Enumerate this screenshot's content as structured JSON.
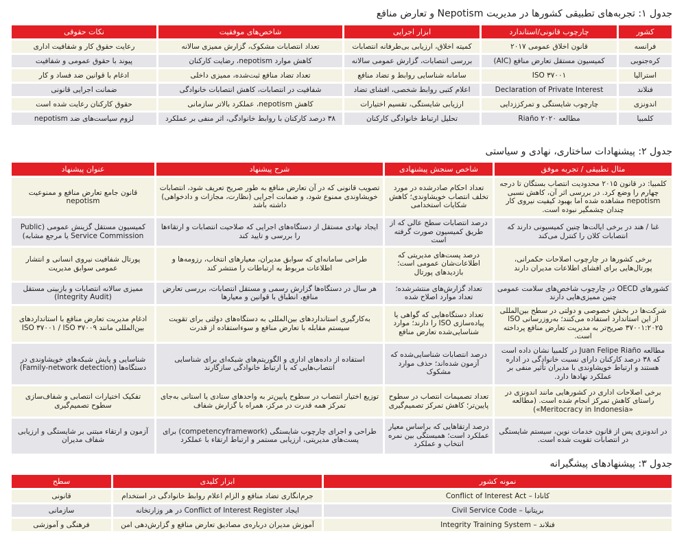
{
  "table1": {
    "title": "جدول ۱: تجربه‌های تطبیقی کشورها در مدیریت Nepotism و تعارض منافع",
    "headers": [
      "کشور",
      "چارچوب قانونی/استاندارد",
      "ابزار اجرایی",
      "شاخص‌های موفقیت",
      "نکات حقوقی"
    ],
    "rows": [
      [
        "فرانسه",
        "قانون اخلاق عمومی ۲۰۱۷",
        "کمیته اخلاق، ارزیابی بی‌طرفانه انتصابات",
        "تعداد انتصابات مشکوک، گزارش ممیزی سالانه",
        "رعایت حقوق کار و شفافیت اداری"
      ],
      [
        "کره‌جنوبی",
        "کمیسیون مستقل تعارض منافع (AIC)",
        "بررسی انتصابات، گزارش عمومی سالانه",
        "کاهش موارد nepotism، رضایت کارکنان",
        "پیوند با حقوق عمومی و شفافیت"
      ],
      [
        "استرالیا",
        "ISO ۳۷۰۰۱",
        "سامانه شناسایی روابط و تضاد منافع",
        "تعداد تضاد منافع ثبت‌شده، ممیزی داخلی",
        "ادغام با قوانین ضد فساد و کار"
      ],
      [
        "فنلاند",
        "Declaration of Private Interest",
        "اعلام کتبی روابط شخصی، افشای تضاد",
        "شفافیت در انتصابات، کاهش انتصابات خانوادگی",
        "ضمانت اجرایی قانونی"
      ],
      [
        "اندونزی",
        "چارچوب شایستگی و تمرکززدایی",
        "ارزیابی شایستگی، تقسیم اختیارات",
        "کاهش nepotism، عملکرد بالاتر سازمانی",
        "حقوق کارکنان رعایت شده است"
      ],
      [
        "کلمبیا",
        "مطالعه Riaño ۲۰۲۰",
        "تحلیل ارتباط خانوادگی کارکنان",
        "۳۸ درصد کارکنان با روابط خانوادگی، اثر منفی بر عملکرد",
        "لزوم سیاست‌های ضد nepotism"
      ]
    ]
  },
  "table2": {
    "title": "جدول ۲: پیشنهادات ساختاری، نهادی و سیاستی",
    "headers": [
      "مثال تطبیقی / تجربه موفق",
      "شاخص سنجش پیشنهادی",
      "شرح پیشنهاد",
      "عنوان پیشنهاد"
    ],
    "rows": [
      [
        "کلمبیا: در قانون ۲۰۱۵ محدودیت انتصاب بستگان تا درجه چهارم را وضع کرد. در بررسی اثر آن، کاهش نسبی nepotism مشاهده شده اما بهبود کیفیت نیروی کار چندان چشمگیر نبوده است.",
        "تعداد احکام صادرشده در مورد تخلف انتصاب خویشاوندی؛ کاهش شکایات استخدامی",
        "تصویب قانونی که در آن تعارض منافع به طور صریح تعریف شود، انتصابات خویشاوندی ممنوع شود، و ضمانت اجرایی (نظارت، مجازات و دادخواهی) داشته باشد",
        "قانون جامع تعارض منافع و ممنوعیت nepotism"
      ],
      [
        "غنا / هند در برخی ایالت‌ها چنین کمیسیونی دارند که انتصابات کلان را کنترل می‌کند",
        "درصد انتصابات سطح عالی که از طریق کمیسیون صورت گرفته است",
        "ایجاد نهادی مستقل از دستگاه‌های اجرایی که صلاحیت انتصابات و ارتقاءها را بررسی و تایید کند",
        "کمیسیون مستقل گزینش عمومی (Public Service Commission یا مرجع مشابه)"
      ],
      [
        "برخی کشورها در چارچوب اصلاحات حکمرانی، پورتال‌هایی برای افشای اطلاعات مدیران دارند",
        "درصد پست‌های مدیریتی که اطلاعات‌شان عمومی است؛ بازدیدهای پورتال",
        "طراحی سامانه‌ای که سوابق مدیران، معیارهای انتخاب، رزومه‌ها و اطلاعات مربوط به ارتباطات را منتشر کند",
        "پورتال شفافیت نیروی انسانی و انتشار عمومی سوابق مدیریت"
      ],
      [
        "کشورهای OECD در چارچوب شاخص‌های سلامت عمومی چنین ممیزی‌هایی دارند",
        "تعداد گزارش‌های منتشرشده؛ تعداد موارد اصلاح شده",
        "هر سال در دستگاه‌ها گزارش رسمی و مستقل انتصابات، بررسی تعارض منافع، انطباق با قوانین و معیارها",
        "ممیزی سالانه انتصابات و بازبینی مستقل (Integrity Audit)"
      ],
      [
        "شرکت‌ها در بخش خصوصی و دولتی در سطح بین‌المللی از این استاندارد استفاده می‌کنند؛ به‌روزرسانی ISO ۳۷۰۰۱:۲۰۲۵ صریح‌تر به مدیریت تعارض منافع پرداخته است.",
        "تعداد دستگاه‌هایی که گواهی یا پیاده‌سازی ISO را دارند؛ موارد شناسایی‌شده تعارض منافع",
        "به‌کارگیری استانداردهای بین‌المللی به دستگاه‌های دولتی برای تقویت سیستم مقابله با تعارض منافع و سوءاستفاده از قدرت",
        "ادغام مدیریت تعارض منافع با استانداردهای بین‌المللی مانند ISO ۳۷۰۰۱ / ISO ۳۷۰۰۹"
      ],
      [
        "مطالعه Juan Felipe Riaño در کلمبیا نشان داده است که ۳۸ درصد کارکنان دارای نسبت خانوادگی در اداره هستند و ارتباط خویشاوندی با مدیران تأثیر منفی بر عملکرد نهادها دارد.",
        "درصد انتصابات شناسایی‌شده که آزمون شده‌اند؛ حذف موارد مشکوک",
        "استفاده از داده‌های اداری و الگوریتم‌های شبکه‌ای برای شناسایی انتصاب‌هایی که با ارتباط خانوادگی سازگارند",
        "شناسایی و پایش شبکه‌های خویشاوندی در دستگاه‌ها (Family-network detection)"
      ],
      [
        "برخی اصلاحات اداری در کشورهایی مانند اندونزی در راستای کاهش تمرکز انجام شده است. (مطالعه «Meritocracy in Indonesia»)",
        "تعداد تصمیمات انتصاب در سطوح پایین‌تر؛ کاهش تمرکز تصمیم‌گیری",
        "توزیع اختیار انتصاب در سطوح پایین‌تر به واحدهای ستادی یا استانی به‌جای تمرکز همه قدرت در مرکز، همراه با گزارش شفاف",
        "تفکیک اختیارات انتصابی و شفاف‌سازی سطوح تصمیم‌گیری"
      ],
      [
        "در اندونزی پس از قانون خدمات نوین، سیستم شایستگی در انتصابات تقویت شده است.",
        "درصد ارتقاهایی که براساس معیار عملکرد است؛ همبستگی بین نمره انتخاب و عملکرد",
        "طراحی و اجرای چارچوب شایستگی (competencyframework) برای پست‌های مدیریتی، ارزیابی مستمر و ارتباط ارتقاء با عملکرد",
        "آزمون و ارتقاء مبتنی بر شایستگی و ارزیابی شفاف مدیران"
      ]
    ]
  },
  "table3": {
    "title": "جدول ۳: پیشنهادهای پیشگیرانه",
    "headers": [
      "نمونه کشور",
      "ابزار کلیدی",
      "سطح"
    ],
    "rows": [
      [
        "کانادا – Conflict of Interest Act",
        "جرم‌انگاری تضاد منافع و الزام اعلام روابط خانوادگی در استخدام",
        "قانونی"
      ],
      [
        "بریتانیا – Civil Service Code",
        "ایجاد Conflict of Interest Register در هر وزارتخانه",
        "سازمانی"
      ],
      [
        "فنلاند – Integrity Training System",
        "آموزش مدیران درباره‌ی مصادیق تعارض منافع و گزارش‌دهی امن",
        "فرهنگی و آموزشی"
      ]
    ]
  },
  "colors": {
    "header": "#e31e24",
    "row_odd": "#f4f2e2",
    "row_even": "#e5e5e9"
  }
}
